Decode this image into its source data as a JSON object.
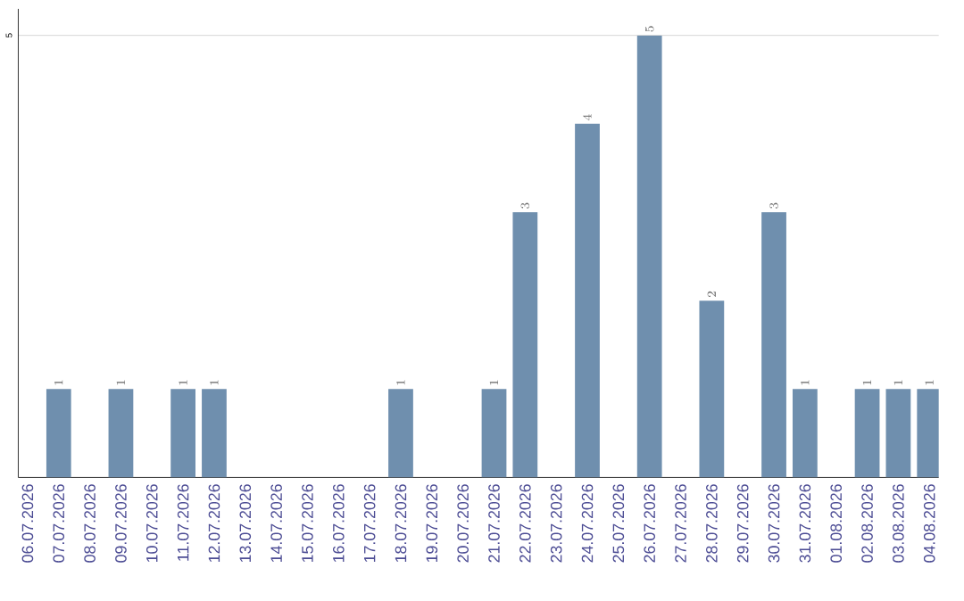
{
  "chart_data": {
    "type": "bar",
    "categories": [
      "06.07.2026",
      "07.07.2026",
      "08.07.2026",
      "09.07.2026",
      "10.07.2026",
      "11.07.2026",
      "12.07.2026",
      "13.07.2026",
      "14.07.2026",
      "15.07.2026",
      "16.07.2026",
      "17.07.2026",
      "18.07.2026",
      "19.07.2026",
      "20.07.2026",
      "21.07.2026",
      "22.07.2026",
      "23.07.2026",
      "24.07.2026",
      "25.07.2026",
      "26.07.2026",
      "27.07.2026",
      "28.07.2026",
      "29.07.2026",
      "30.07.2026",
      "31.07.2026",
      "01.08.2026",
      "02.08.2026",
      "03.08.2026",
      "04.08.2026"
    ],
    "values": [
      null,
      1,
      null,
      1,
      null,
      1,
      1,
      null,
      null,
      null,
      null,
      null,
      1,
      null,
      null,
      1,
      3,
      null,
      4,
      null,
      5,
      null,
      2,
      null,
      3,
      1,
      null,
      1,
      1,
      1
    ],
    "color": "#6f8fae",
    "ylim": [
      0,
      5.3
    ],
    "yticks": [
      5
    ],
    "grid": "y",
    "data_labels": true
  }
}
